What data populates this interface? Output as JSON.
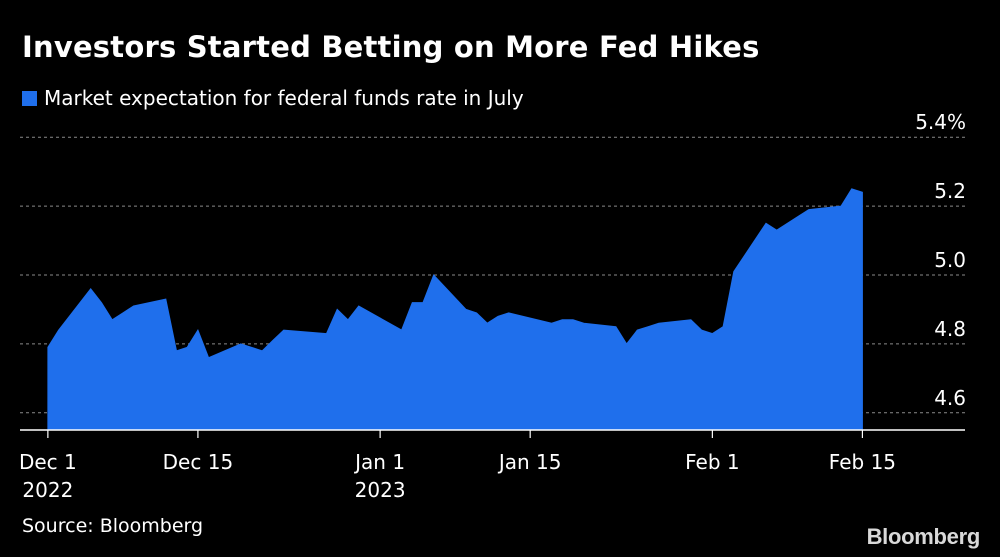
{
  "chart_data": {
    "type": "area",
    "title": "Investors Started Betting on More Fed Hikes",
    "source": "Source: Bloomberg",
    "brand": "Bloomberg",
    "series": [
      {
        "name": "Market expectation for federal funds rate in July",
        "color": "#1f6fec",
        "points": [
          [
            "2022-12-01",
            4.79
          ],
          [
            "2022-12-02",
            4.84
          ],
          [
            "2022-12-05",
            4.96
          ],
          [
            "2022-12-06",
            4.92
          ],
          [
            "2022-12-07",
            4.87
          ],
          [
            "2022-12-08",
            4.89
          ],
          [
            "2022-12-09",
            4.91
          ],
          [
            "2022-12-12",
            4.93
          ],
          [
            "2022-12-13",
            4.78
          ],
          [
            "2022-12-14",
            4.79
          ],
          [
            "2022-12-15",
            4.84
          ],
          [
            "2022-12-16",
            4.76
          ],
          [
            "2022-12-19",
            4.8
          ],
          [
            "2022-12-20",
            4.79
          ],
          [
            "2022-12-21",
            4.78
          ],
          [
            "2022-12-22",
            4.81
          ],
          [
            "2022-12-23",
            4.84
          ],
          [
            "2022-12-27",
            4.83
          ],
          [
            "2022-12-28",
            4.9
          ],
          [
            "2022-12-29",
            4.87
          ],
          [
            "2022-12-30",
            4.91
          ],
          [
            "2023-01-03",
            4.84
          ],
          [
            "2023-01-04",
            4.92
          ],
          [
            "2023-01-05",
            4.92
          ],
          [
            "2023-01-06",
            5.0
          ],
          [
            "2023-01-09",
            4.9
          ],
          [
            "2023-01-10",
            4.89
          ],
          [
            "2023-01-11",
            4.86
          ],
          [
            "2023-01-12",
            4.88
          ],
          [
            "2023-01-13",
            4.89
          ],
          [
            "2023-01-17",
            4.86
          ],
          [
            "2023-01-18",
            4.87
          ],
          [
            "2023-01-19",
            4.87
          ],
          [
            "2023-01-20",
            4.86
          ],
          [
            "2023-01-23",
            4.85
          ],
          [
            "2023-01-24",
            4.8
          ],
          [
            "2023-01-25",
            4.84
          ],
          [
            "2023-01-26",
            4.85
          ],
          [
            "2023-01-27",
            4.86
          ],
          [
            "2023-01-30",
            4.87
          ],
          [
            "2023-01-31",
            4.84
          ],
          [
            "2023-02-01",
            4.83
          ],
          [
            "2023-02-02",
            4.85
          ],
          [
            "2023-02-03",
            5.01
          ],
          [
            "2023-02-06",
            5.15
          ],
          [
            "2023-02-07",
            5.13
          ],
          [
            "2023-02-08",
            5.15
          ],
          [
            "2023-02-09",
            5.17
          ],
          [
            "2023-02-10",
            5.19
          ],
          [
            "2023-02-13",
            5.2
          ],
          [
            "2023-02-14",
            5.25
          ],
          [
            "2023-02-15",
            5.24
          ]
        ]
      }
    ],
    "x_axis": {
      "type": "date",
      "range": [
        "2022-11-27",
        "2023-02-20"
      ],
      "ticks": [
        {
          "date": "2022-12-01",
          "label": "Dec 1",
          "sublabel": "2022"
        },
        {
          "date": "2022-12-15",
          "label": "Dec 15",
          "sublabel": ""
        },
        {
          "date": "2023-01-01",
          "label": "Jan 1",
          "sublabel": "2023"
        },
        {
          "date": "2023-01-15",
          "label": "Jan 15",
          "sublabel": ""
        },
        {
          "date": "2023-02-01",
          "label": "Feb 1",
          "sublabel": ""
        },
        {
          "date": "2023-02-15",
          "label": "Feb 15",
          "sublabel": ""
        }
      ]
    },
    "y_axis": {
      "position": "right",
      "range": [
        4.55,
        5.45
      ],
      "ticks": [
        {
          "value": 4.6,
          "label": "4.6"
        },
        {
          "value": 4.8,
          "label": "4.8"
        },
        {
          "value": 5.0,
          "label": "5.0"
        },
        {
          "value": 5.2,
          "label": "5.2"
        },
        {
          "value": 5.4,
          "label": "5.4%"
        }
      ],
      "grid": "dashed"
    },
    "legend_position": "top-left"
  }
}
